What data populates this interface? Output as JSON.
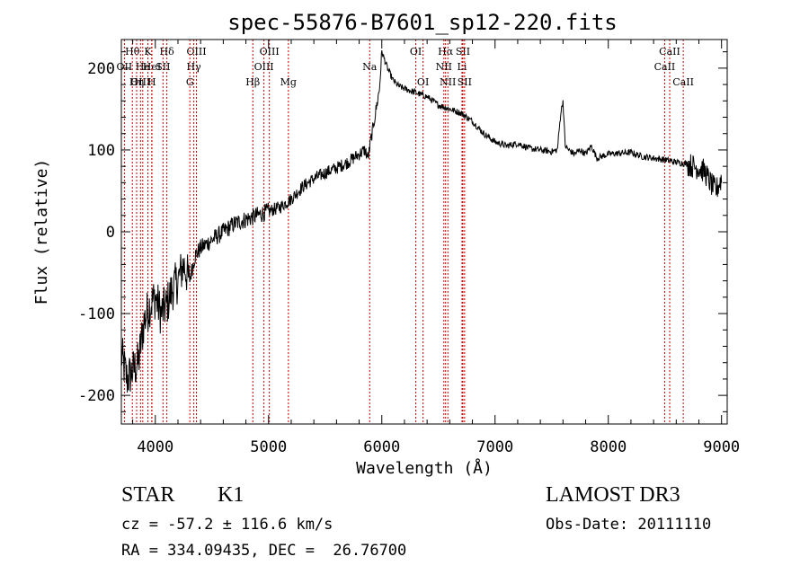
{
  "chart_data": {
    "type": "line",
    "title": "spec-55876-B7601_sp12-220.fits",
    "xlabel": "Wavelength (Å)",
    "ylabel": "Flux (relative)",
    "xlim": [
      3700,
      9050
    ],
    "ylim": [
      -235,
      235
    ],
    "xticks": [
      4000,
      5000,
      6000,
      7000,
      8000,
      9000
    ],
    "yticks": [
      -200,
      -100,
      0,
      100,
      200
    ],
    "series": [
      {
        "name": "spectrum",
        "x": [
          3700,
          3750,
          3800,
          3850,
          3900,
          3950,
          4000,
          4050,
          4100,
          4150,
          4200,
          4250,
          4300,
          4350,
          4400,
          4500,
          4600,
          4700,
          4800,
          4900,
          5000,
          5100,
          5200,
          5300,
          5400,
          5500,
          5600,
          5700,
          5800,
          5850,
          5880,
          5900,
          5920,
          5950,
          5980,
          6000,
          6050,
          6100,
          6150,
          6200,
          6300,
          6400,
          6500,
          6600,
          6700,
          6800,
          6900,
          7000,
          7100,
          7200,
          7300,
          7400,
          7500,
          7550,
          7580,
          7600,
          7620,
          7650,
          7700,
          7750,
          7800,
          7850,
          7900,
          8000,
          8100,
          8200,
          8300,
          8400,
          8500,
          8600,
          8700,
          8750,
          8800,
          8850,
          8900,
          8950,
          9000
        ],
        "y": [
          -150,
          -180,
          -170,
          -160,
          -110,
          -90,
          -80,
          -100,
          -90,
          -70,
          -60,
          -40,
          -60,
          -30,
          -20,
          -10,
          0,
          10,
          15,
          20,
          25,
          30,
          40,
          55,
          65,
          72,
          78,
          85,
          95,
          100,
          90,
          110,
          125,
          150,
          175,
          220,
          200,
          185,
          178,
          175,
          170,
          165,
          155,
          150,
          145,
          135,
          120,
          110,
          105,
          108,
          102,
          100,
          98,
          100,
          145,
          160,
          105,
          100,
          95,
          100,
          95,
          105,
          90,
          95,
          96,
          97,
          92,
          90,
          88,
          85,
          83,
          80,
          78,
          74,
          60,
          50,
          65
        ]
      }
    ],
    "lines": [
      {
        "name": "Hθ",
        "x": 3797,
        "row": 0
      },
      {
        "name": "OII",
        "x": 3727,
        "row": 1
      },
      {
        "name": "OIII",
        "x": 3869,
        "row": 2
      },
      {
        "name": "He",
        "x": 3889,
        "row": 1
      },
      {
        "name": "K",
        "x": 3934,
        "row": 0
      },
      {
        "name": "Hη",
        "x": 3835,
        "row": 2
      },
      {
        "name": "HeI",
        "x": 3970,
        "row": 1
      },
      {
        "name": "H",
        "x": 3968,
        "row": 2
      },
      {
        "name": "Hδ",
        "x": 4102,
        "row": 0
      },
      {
        "name": "SII",
        "x": 4068,
        "row": 1
      },
      {
        "name": "OIII",
        "x": 4363,
        "row": 0
      },
      {
        "name": "Hγ",
        "x": 4340,
        "row": 1
      },
      {
        "name": "G",
        "x": 4305,
        "row": 2
      },
      {
        "name": "Hβ",
        "x": 4861,
        "row": 2
      },
      {
        "name": "OIII",
        "x": 5007,
        "row": 0
      },
      {
        "name": "OIII",
        "x": 4959,
        "row": 1
      },
      {
        "name": "Mg",
        "x": 5175,
        "row": 2
      },
      {
        "name": "Na",
        "x": 5893,
        "row": 1
      },
      {
        "name": "OI",
        "x": 6300,
        "row": 0
      },
      {
        "name": "OI",
        "x": 6364,
        "row": 2
      },
      {
        "name": "Hα",
        "x": 6563,
        "row": 0
      },
      {
        "name": "SII",
        "x": 6716,
        "row": 0
      },
      {
        "name": "NII",
        "x": 6548,
        "row": 1
      },
      {
        "name": "Li",
        "x": 6708,
        "row": 1
      },
      {
        "name": "NII",
        "x": 6583,
        "row": 2
      },
      {
        "name": "SII",
        "x": 6731,
        "row": 2
      },
      {
        "name": "CaII",
        "x": 8542,
        "row": 0
      },
      {
        "name": "CaII",
        "x": 8498,
        "row": 1
      },
      {
        "name": "CaII",
        "x": 8662,
        "row": 2
      }
    ],
    "line_color": "#cc0000"
  },
  "info": {
    "class": "STAR",
    "subclass": "K1",
    "redshift": "cz = -57.2 ± 116.6 km/s",
    "coords": "RA = 334.09435, DEC =  26.76700",
    "survey": "LAMOST DR3",
    "obs_date": "Obs-Date: 20111110"
  }
}
